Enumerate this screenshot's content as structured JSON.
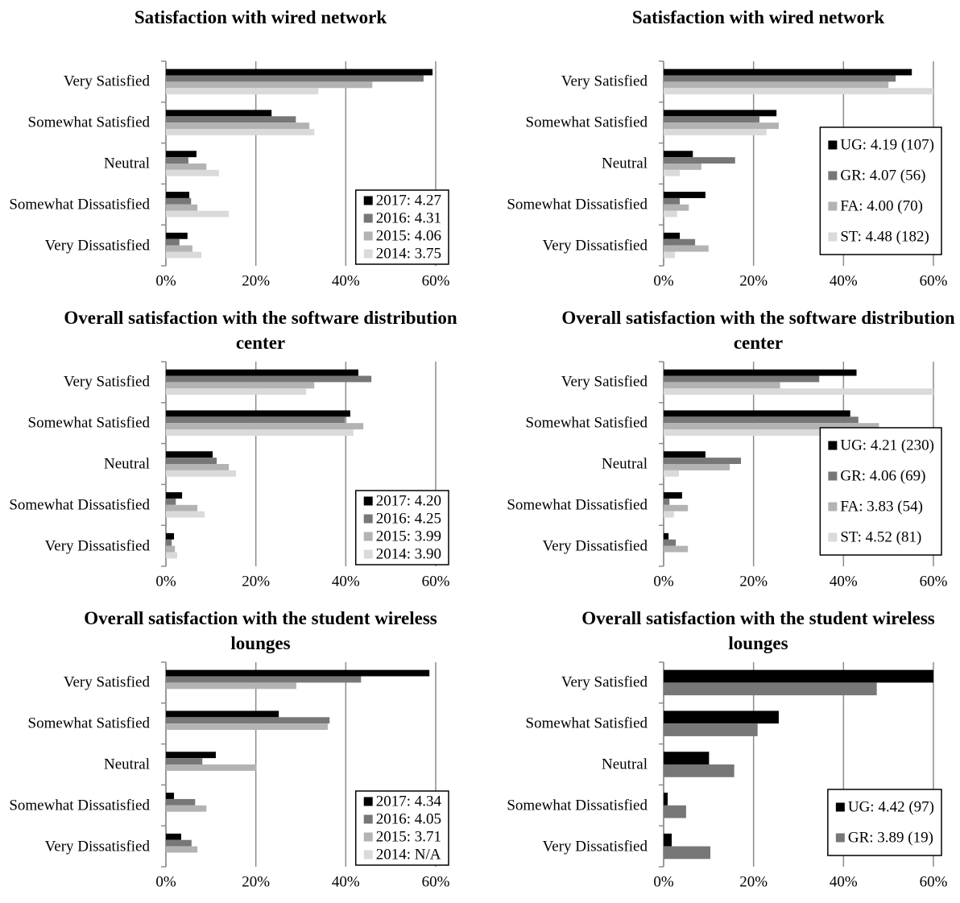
{
  "chart_data": [
    {
      "type": "bar",
      "orientation": "horizontal",
      "title": "Satisfaction with wired network",
      "categories": [
        "Very Satisfied",
        "Somewhat Satisfied",
        "Neutral",
        "Somewhat Dissatisfied",
        "Very Dissatisfied"
      ],
      "series": [
        {
          "name": "2017: 4.27",
          "color": "#000000",
          "values": [
            59.3,
            23.5,
            6.8,
            5.2,
            4.8
          ]
        },
        {
          "name": "2016: 4.31",
          "color": "#777777",
          "values": [
            57.3,
            28.9,
            5.0,
            5.6,
            3.0
          ]
        },
        {
          "name": "2015: 4.06",
          "color": "#b3b3b3",
          "values": [
            45.9,
            31.9,
            9.0,
            7.0,
            5.9
          ]
        },
        {
          "name": "2014: 3.75",
          "color": "#dadada",
          "values": [
            33.9,
            33.0,
            11.8,
            14.0,
            7.9
          ]
        }
      ],
      "xlim": [
        0,
        60
      ],
      "xticks": [
        {
          "value": 0,
          "label": "0%"
        },
        {
          "value": 20,
          "label": "20%"
        },
        {
          "value": 40,
          "label": "40%"
        },
        {
          "value": 60,
          "label": "60%"
        }
      ],
      "grid": true,
      "legend": "lower right"
    },
    {
      "type": "bar",
      "orientation": "horizontal",
      "title": "Satisfaction with wired network",
      "categories": [
        "Very Satisfied",
        "Somewhat Satisfied",
        "Neutral",
        "Somewhat Dissatisfied",
        "Very Dissatisfied"
      ],
      "series": [
        {
          "name": "UG: 4.19 (107)",
          "color": "#000000",
          "values": [
            55.2,
            25.1,
            6.5,
            9.3,
            3.6
          ]
        },
        {
          "name": "GR: 4.07 (56)",
          "color": "#777777",
          "values": [
            51.6,
            21.3,
            15.9,
            3.6,
            7.0
          ]
        },
        {
          "name": "FA: 4.00 (70)",
          "color": "#b3b3b3",
          "values": [
            50.0,
            25.6,
            8.4,
            5.6,
            10.0
          ]
        },
        {
          "name": "ST: 4.48 (182)",
          "color": "#dadada",
          "values": [
            60.0,
            22.9,
            3.6,
            3.0,
            2.5
          ]
        }
      ],
      "xlim": [
        0,
        60
      ],
      "xticks": [
        {
          "value": 0,
          "label": "0%"
        },
        {
          "value": 20,
          "label": "20%"
        },
        {
          "value": 40,
          "label": "40%"
        },
        {
          "value": 60,
          "label": "60%"
        }
      ],
      "grid": true,
      "legend": "lower right"
    },
    {
      "type": "bar",
      "orientation": "horizontal",
      "title": "Overall satisfaction with the software distribution center",
      "categories": [
        "Very Satisfied",
        "Somewhat Satisfied",
        "Neutral",
        "Somewhat Dissatisfied",
        "Very Dissatisfied"
      ],
      "series": [
        {
          "name": "2017: 4.20",
          "color": "#000000",
          "values": [
            42.8,
            41.0,
            10.4,
            3.6,
            1.8
          ]
        },
        {
          "name": "2016: 4.25",
          "color": "#777777",
          "values": [
            45.7,
            39.8,
            11.3,
            2.2,
            1.3
          ]
        },
        {
          "name": "2015: 3.99",
          "color": "#b3b3b3",
          "values": [
            33.0,
            43.9,
            14.0,
            7.0,
            2.0
          ]
        },
        {
          "name": "2014: 3.90",
          "color": "#dadada",
          "values": [
            31.2,
            41.7,
            15.6,
            8.6,
            2.5
          ]
        }
      ],
      "xlim": [
        0,
        60
      ],
      "xticks": [
        {
          "value": 0,
          "label": "0%"
        },
        {
          "value": 20,
          "label": "20%"
        },
        {
          "value": 40,
          "label": "40%"
        },
        {
          "value": 60,
          "label": "60%"
        }
      ],
      "grid": true,
      "legend": "lower right"
    },
    {
      "type": "bar",
      "orientation": "horizontal",
      "title": "Overall satisfaction with the software distribution center",
      "categories": [
        "Very Satisfied",
        "Somewhat Satisfied",
        "Neutral",
        "Somewhat Dissatisfied",
        "Very Dissatisfied"
      ],
      "series": [
        {
          "name": "UG: 4.21 (230)",
          "color": "#000000",
          "values": [
            42.9,
            41.5,
            9.3,
            4.1,
            1.1
          ]
        },
        {
          "name": "GR: 4.06 (69)",
          "color": "#777777",
          "values": [
            34.6,
            43.3,
            17.2,
            1.3,
            2.7
          ]
        },
        {
          "name": "FA: 3.83 (54)",
          "color": "#b3b3b3",
          "values": [
            25.9,
            47.9,
            14.7,
            5.4,
            5.4
          ]
        },
        {
          "name": "ST: 4.52 (81)",
          "color": "#dadada",
          "values": [
            60.0,
            35.0,
            3.4,
            2.3,
            0
          ]
        }
      ],
      "xlim": [
        0,
        60
      ],
      "xticks": [
        {
          "value": 0,
          "label": "0%"
        },
        {
          "value": 20,
          "label": "20%"
        },
        {
          "value": 40,
          "label": "40%"
        },
        {
          "value": 60,
          "label": "60%"
        }
      ],
      "grid": true,
      "legend": "lower right"
    },
    {
      "type": "bar",
      "orientation": "horizontal",
      "title": "Overall satisfaction with the student wireless lounges",
      "categories": [
        "Very Satisfied",
        "Somewhat Satisfied",
        "Neutral",
        "Somewhat Dissatisfied",
        "Very Dissatisfied"
      ],
      "series": [
        {
          "name": "2017: 4.34",
          "color": "#000000",
          "values": [
            58.6,
            25.1,
            11.1,
            1.8,
            3.4
          ]
        },
        {
          "name": "2016: 4.05",
          "color": "#777777",
          "values": [
            43.4,
            36.4,
            8.1,
            6.5,
            5.7
          ]
        },
        {
          "name": "2015: 3.71",
          "color": "#b3b3b3",
          "values": [
            29.0,
            36.0,
            20.1,
            9.0,
            7.0
          ]
        },
        {
          "name": "2014: N/A",
          "color": "#dadada",
          "values": [
            null,
            null,
            null,
            null,
            null
          ]
        }
      ],
      "xlim": [
        0,
        60
      ],
      "xticks": [
        {
          "value": 0,
          "label": "0%"
        },
        {
          "value": 20,
          "label": "20%"
        },
        {
          "value": 40,
          "label": "40%"
        },
        {
          "value": 60,
          "label": "60%"
        }
      ],
      "grid": true,
      "legend": "lower right"
    },
    {
      "type": "bar",
      "orientation": "horizontal",
      "title": "Overall satisfaction with the student wireless lounges",
      "categories": [
        "Very Satisfied",
        "Somewhat Satisfied",
        "Neutral",
        "Somewhat Dissatisfied",
        "Very Dissatisfied"
      ],
      "series": [
        {
          "name": "UG: 4.42 (97)",
          "color": "#000000",
          "values": [
            60.0,
            25.6,
            10.1,
            0.9,
            1.8
          ]
        },
        {
          "name": "GR: 3.89 (19)",
          "color": "#777777",
          "values": [
            47.4,
            20.9,
            15.7,
            5.0,
            10.4
          ]
        }
      ],
      "xlim": [
        0,
        60
      ],
      "xticks": [
        {
          "value": 0,
          "label": "0%"
        },
        {
          "value": 20,
          "label": "20%"
        },
        {
          "value": 40,
          "label": "40%"
        },
        {
          "value": 60,
          "label": "60%"
        }
      ],
      "grid": true,
      "legend": "lower right"
    }
  ]
}
